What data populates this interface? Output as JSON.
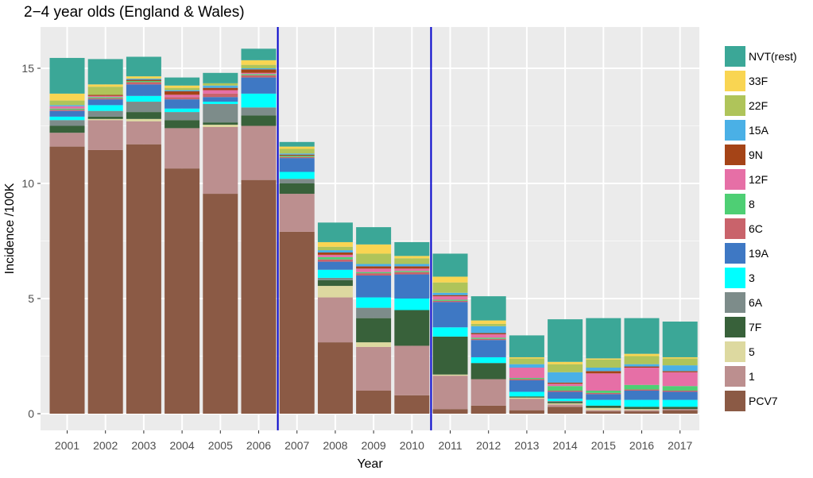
{
  "chart_data": {
    "type": "bar",
    "stacked": true,
    "title": "2−4 year olds (England & Wales)",
    "xlabel": "Year",
    "ylabel": "Incidence /100K",
    "ylim": [
      0,
      16.5
    ],
    "yticks": [
      0,
      5,
      10,
      15
    ],
    "ytick_labels": [
      "0",
      "5",
      "10",
      "15"
    ],
    "grid": true,
    "legend_position": "right",
    "categories": [
      "2001",
      "2002",
      "2003",
      "2004",
      "2005",
      "2006",
      "2007",
      "2008",
      "2009",
      "2010",
      "2011",
      "2012",
      "2013",
      "2014",
      "2015",
      "2016",
      "2017"
    ],
    "vertical_markers": [
      {
        "between": [
          "2006",
          "2007"
        ],
        "color": "#0000CC"
      },
      {
        "between": [
          "2010",
          "2011"
        ],
        "color": "#0000CC"
      }
    ],
    "series": [
      {
        "name": "PCV7",
        "color": "#8B5A45",
        "values": [
          11.6,
          11.45,
          11.7,
          10.65,
          9.55,
          10.15,
          7.9,
          3.1,
          1.0,
          0.8,
          0.2,
          0.35,
          0.15,
          0.3,
          0.1,
          0.1,
          0.15
        ]
      },
      {
        "name": "1",
        "color": "#BC8F8F",
        "values": [
          0.6,
          1.3,
          1.0,
          1.75,
          2.9,
          2.35,
          1.65,
          1.95,
          1.9,
          2.15,
          1.45,
          1.15,
          0.5,
          0.1,
          0.05,
          0.05,
          0.05
        ]
      },
      {
        "name": "5",
        "color": "#DDD9A0",
        "values": [
          0.0,
          0.05,
          0.1,
          0.0,
          0.1,
          0.0,
          0.0,
          0.5,
          0.2,
          0.0,
          0.05,
          0.0,
          0.05,
          0.05,
          0.1,
          0.05,
          0.0
        ]
      },
      {
        "name": "7F",
        "color": "#38613A",
        "values": [
          0.3,
          0.1,
          0.3,
          0.35,
          0.1,
          0.45,
          0.45,
          0.25,
          1.05,
          1.55,
          1.65,
          0.7,
          0.05,
          0.05,
          0.1,
          0.1,
          0.1
        ]
      },
      {
        "name": "6A",
        "color": "#7D8C8A",
        "values": [
          0.25,
          0.25,
          0.45,
          0.35,
          0.8,
          0.35,
          0.2,
          0.1,
          0.45,
          0.0,
          0.0,
          0.0,
          0.0,
          0.05,
          0.0,
          0.0,
          0.0
        ]
      },
      {
        "name": "3",
        "color": "#00FFFF",
        "values": [
          0.15,
          0.25,
          0.25,
          0.15,
          0.1,
          0.6,
          0.3,
          0.35,
          0.45,
          0.5,
          0.4,
          0.25,
          0.2,
          0.1,
          0.25,
          0.3,
          0.3
        ]
      },
      {
        "name": "19A",
        "color": "#3E78C4",
        "values": [
          0.25,
          0.25,
          0.5,
          0.4,
          0.2,
          0.7,
          0.6,
          0.35,
          0.95,
          1.05,
          1.1,
          0.75,
          0.5,
          0.3,
          0.25,
          0.4,
          0.35
        ]
      },
      {
        "name": "6C",
        "color": "#C9636B",
        "values": [
          0.05,
          0.05,
          0.1,
          0.1,
          0.15,
          0.1,
          0.05,
          0.1,
          0.1,
          0.1,
          0.05,
          0.05,
          0.05,
          0.05,
          0.05,
          0.05,
          0.05
        ]
      },
      {
        "name": "8",
        "color": "#4ECF74",
        "values": [
          0.05,
          0.05,
          0.05,
          0.0,
          0.0,
          0.05,
          0.05,
          0.1,
          0.05,
          0.05,
          0.05,
          0.05,
          0.05,
          0.2,
          0.1,
          0.2,
          0.2
        ]
      },
      {
        "name": "12F",
        "color": "#E66FA6",
        "values": [
          0.1,
          0.05,
          0.0,
          0.1,
          0.15,
          0.05,
          0.0,
          0.1,
          0.15,
          0.1,
          0.15,
          0.15,
          0.45,
          0.1,
          0.75,
          0.75,
          0.6
        ]
      },
      {
        "name": "9N",
        "color": "#A54417",
        "values": [
          0.0,
          0.05,
          0.05,
          0.15,
          0.1,
          0.15,
          0.05,
          0.1,
          0.1,
          0.1,
          0.05,
          0.05,
          0.0,
          0.05,
          0.1,
          0.05,
          0.05
        ]
      },
      {
        "name": "15A",
        "color": "#4AB0E6",
        "values": [
          0.05,
          0.0,
          0.05,
          0.05,
          0.1,
          0.05,
          0.05,
          0.1,
          0.1,
          0.1,
          0.1,
          0.3,
          0.15,
          0.45,
          0.15,
          0.1,
          0.25
        ]
      },
      {
        "name": "22F",
        "color": "#AFC45A",
        "values": [
          0.2,
          0.35,
          0.0,
          0.1,
          0.1,
          0.15,
          0.2,
          0.15,
          0.45,
          0.25,
          0.45,
          0.1,
          0.25,
          0.35,
          0.35,
          0.35,
          0.3
        ]
      },
      {
        "name": "33F",
        "color": "#F9D552",
        "values": [
          0.3,
          0.1,
          0.1,
          0.1,
          0.0,
          0.2,
          0.1,
          0.2,
          0.4,
          0.1,
          0.25,
          0.15,
          0.05,
          0.1,
          0.05,
          0.1,
          0.05
        ]
      },
      {
        "name": "NVT(rest)",
        "color": "#3BA797",
        "values": [
          1.55,
          1.1,
          0.85,
          0.35,
          0.45,
          0.5,
          0.2,
          0.85,
          0.75,
          0.6,
          1.0,
          1.05,
          0.95,
          1.85,
          1.75,
          1.55,
          1.55
        ]
      }
    ]
  }
}
